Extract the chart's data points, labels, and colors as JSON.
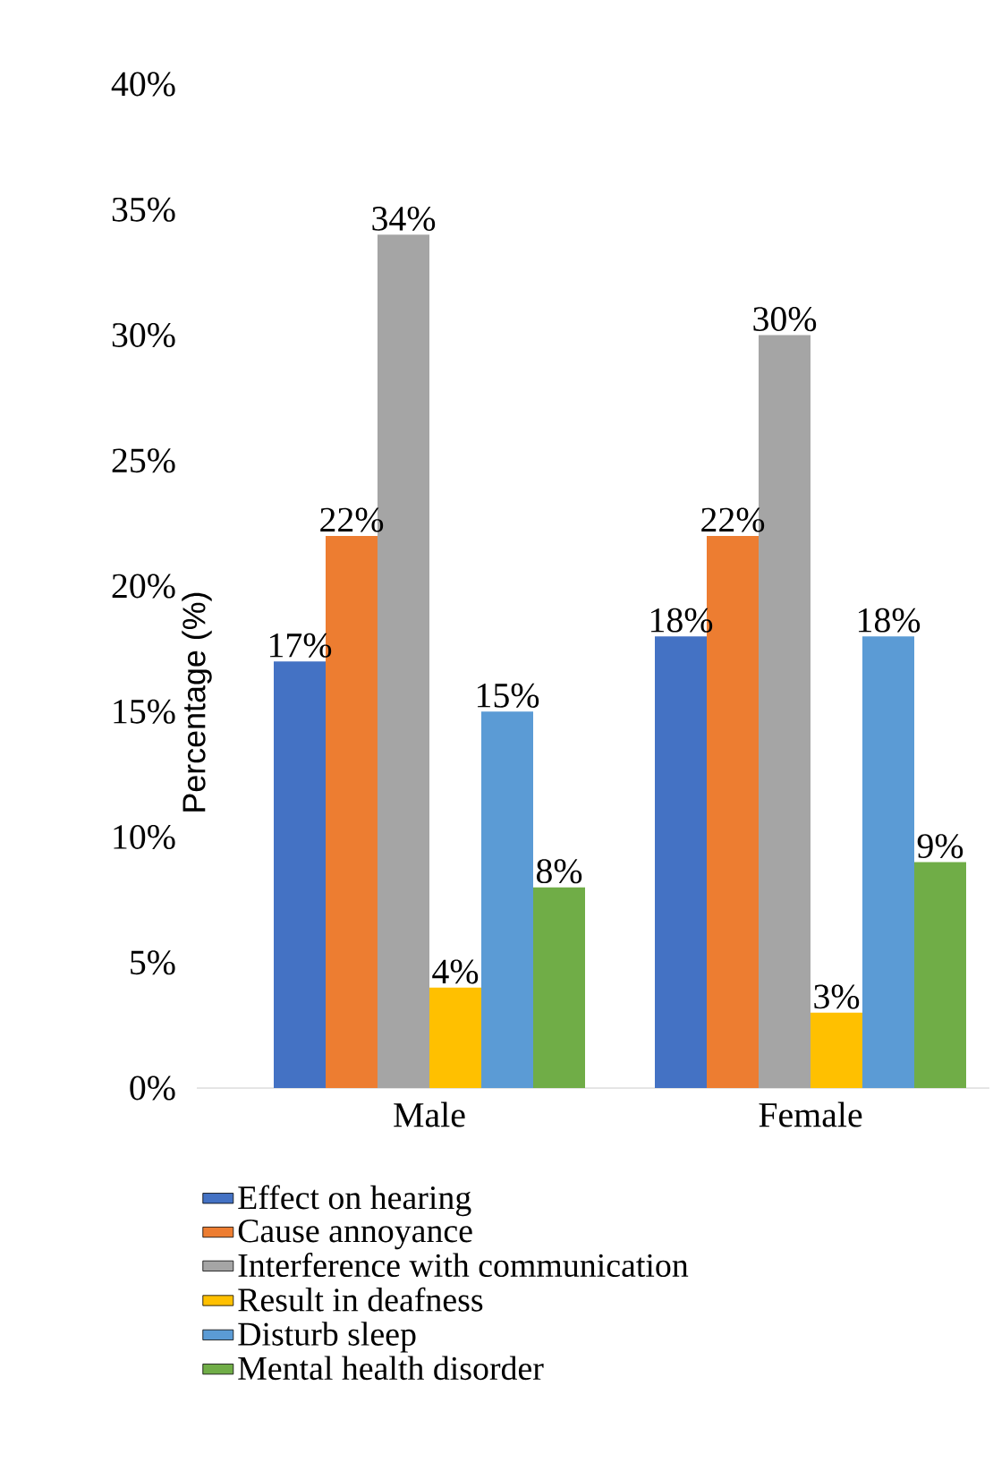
{
  "chart_data": {
    "type": "bar",
    "ylabel": "Percentage (%)",
    "categories": [
      "Male",
      "Female"
    ],
    "series": [
      {
        "name": "Effect on hearing",
        "color": "#4472c4",
        "values": [
          17,
          18
        ],
        "value_labels": [
          "17%",
          "18%"
        ]
      },
      {
        "name": "Cause annoyance",
        "color": "#ed7d31",
        "values": [
          22,
          22
        ],
        "value_labels": [
          "22%",
          "22%"
        ]
      },
      {
        "name": "Interference with communication",
        "color": "#a5a5a5",
        "values": [
          34,
          30
        ],
        "value_labels": [
          "34%",
          "30%"
        ]
      },
      {
        "name": "Result in deafness",
        "color": "#ffc000",
        "values": [
          4,
          3
        ],
        "value_labels": [
          "4%",
          "3%"
        ]
      },
      {
        "name": "Disturb sleep",
        "color": "#5b9bd5",
        "values": [
          15,
          18
        ],
        "value_labels": [
          "15%",
          "18%"
        ]
      },
      {
        "name": "Mental health disorder",
        "color": "#70ad47",
        "values": [
          8,
          9
        ],
        "value_labels": [
          "8%",
          "9%"
        ]
      }
    ],
    "ylim": [
      0,
      40
    ],
    "yticks": [
      {
        "value": 0,
        "label": "0%"
      },
      {
        "value": 5,
        "label": "5%"
      },
      {
        "value": 10,
        "label": "10%"
      },
      {
        "value": 15,
        "label": "15%"
      },
      {
        "value": 20,
        "label": "20%"
      },
      {
        "value": 25,
        "label": "25%"
      },
      {
        "value": 30,
        "label": "30%"
      },
      {
        "value": 35,
        "label": "35%"
      },
      {
        "value": 40,
        "label": "40%"
      }
    ],
    "grid": false,
    "legend": "bottom"
  }
}
